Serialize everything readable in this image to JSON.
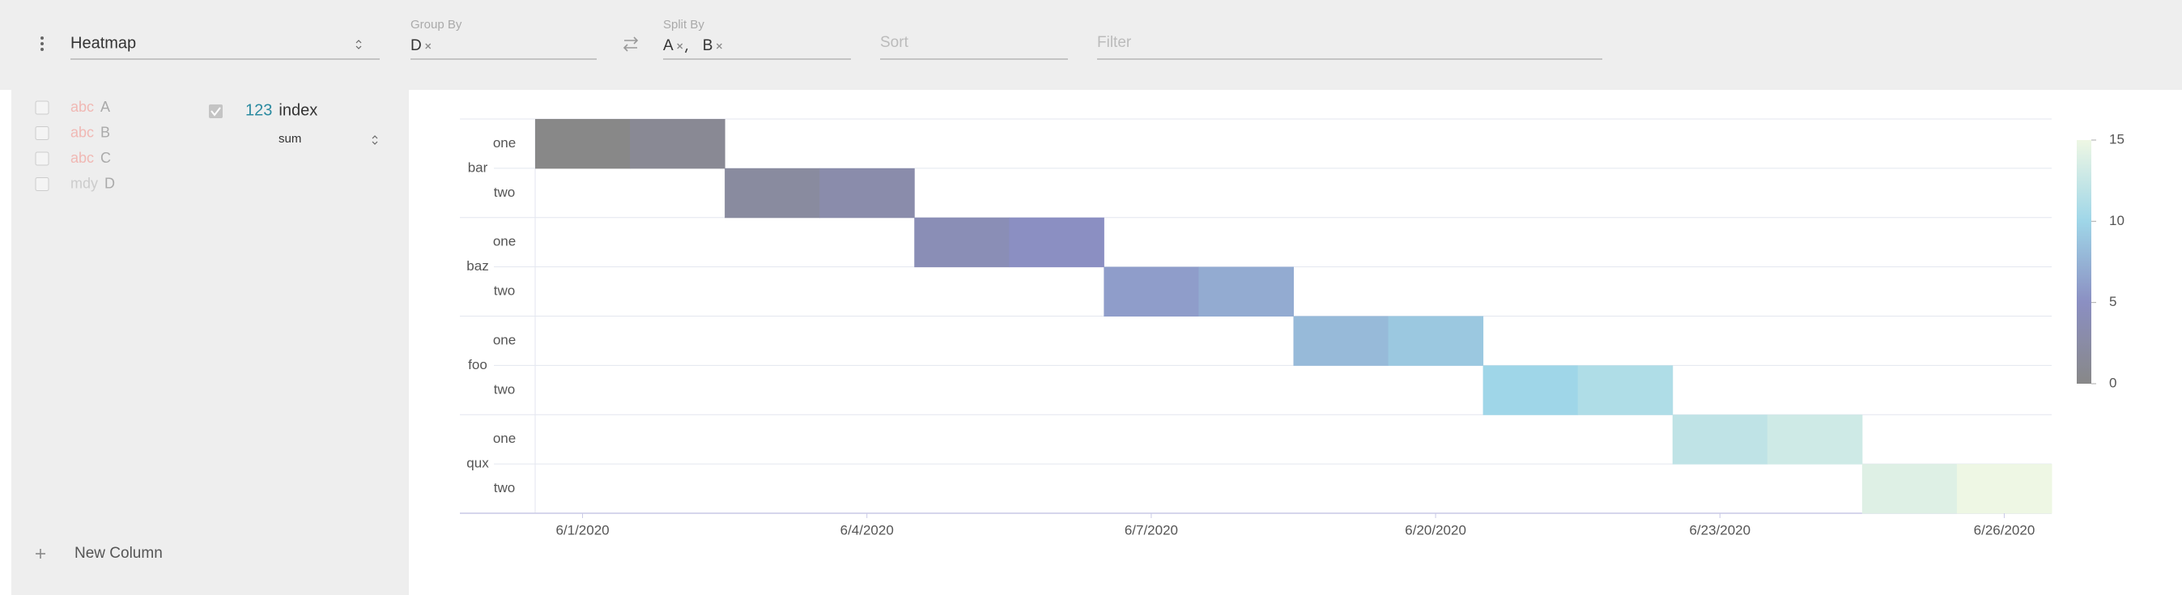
{
  "toolbar": {
    "plugin": "Heatmap",
    "group_by_label": "Group By",
    "group_by": [
      "D"
    ],
    "split_by_label": "Split By",
    "split_by": [
      "A",
      "B"
    ],
    "sort_placeholder": "Sort",
    "filter_placeholder": "Filter"
  },
  "columns": [
    {
      "type": "abc",
      "name": "A"
    },
    {
      "type": "abc",
      "name": "B"
    },
    {
      "type": "abc",
      "name": "C"
    },
    {
      "type": "mdy",
      "name": "D"
    }
  ],
  "active_column": {
    "type": "123",
    "name": "index",
    "aggregate": "sum"
  },
  "new_column": "New Column",
  "chart_data": {
    "type": "heatmap",
    "x": [
      "6/1/2020",
      null,
      null,
      "6/4/2020",
      null,
      null,
      "6/7/2020",
      null,
      null,
      "6/20/2020",
      null,
      null,
      "6/23/2020",
      null,
      null,
      "6/26/2020"
    ],
    "y_groups": [
      {
        "name": "bar",
        "categories": [
          "one",
          "two"
        ]
      },
      {
        "name": "baz",
        "categories": [
          "one",
          "two"
        ]
      },
      {
        "name": "foo",
        "categories": [
          "one",
          "two"
        ]
      },
      {
        "name": "qux",
        "categories": [
          "one",
          "two"
        ]
      }
    ],
    "values": [
      [
        0,
        1,
        null,
        null,
        null,
        null,
        null,
        null,
        null,
        null,
        null,
        null,
        null,
        null,
        null,
        null
      ],
      [
        null,
        null,
        2,
        3,
        null,
        null,
        null,
        null,
        null,
        null,
        null,
        null,
        null,
        null,
        null,
        null
      ],
      [
        null,
        null,
        null,
        null,
        4,
        5,
        null,
        null,
        null,
        null,
        null,
        null,
        null,
        null,
        null,
        null
      ],
      [
        null,
        null,
        null,
        null,
        null,
        null,
        6,
        7,
        null,
        null,
        null,
        null,
        null,
        null,
        null,
        null
      ],
      [
        null,
        null,
        null,
        null,
        null,
        null,
        null,
        null,
        8,
        9,
        null,
        null,
        null,
        null,
        null,
        null
      ],
      [
        null,
        null,
        null,
        null,
        null,
        null,
        null,
        null,
        null,
        null,
        10,
        11,
        null,
        null,
        null,
        null
      ],
      [
        null,
        null,
        null,
        null,
        null,
        null,
        null,
        null,
        null,
        null,
        null,
        null,
        12,
        13,
        null,
        null
      ],
      [
        null,
        null,
        null,
        null,
        null,
        null,
        null,
        null,
        null,
        null,
        null,
        null,
        null,
        null,
        14,
        15
      ]
    ],
    "colorscale": [
      "#888888",
      "#8b8fc2",
      "#9fd6e8",
      "#eef7e4"
    ],
    "clim": [
      0,
      15
    ],
    "cticks": [
      0,
      5,
      10,
      15
    ]
  }
}
